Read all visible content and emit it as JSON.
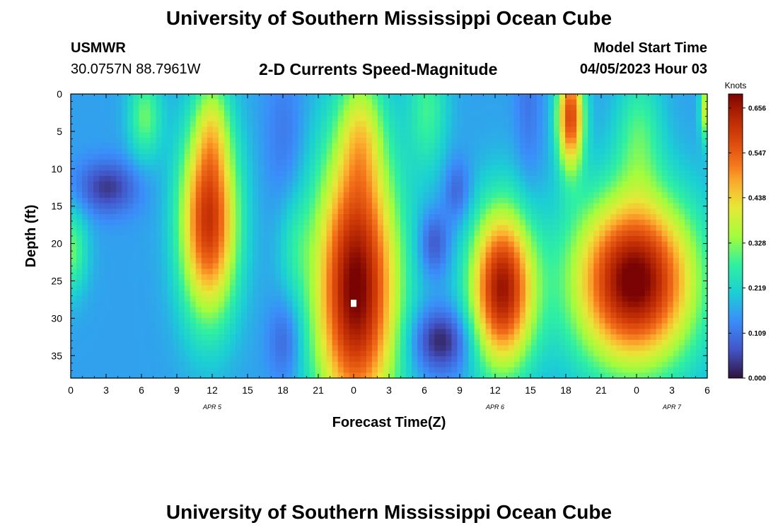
{
  "header": {
    "title": "University of Southern Mississippi Ocean Cube",
    "station": "USMWR",
    "coords": "30.0757N  88.7961W",
    "subtitle": "2-D Currents Speed-Magnitude",
    "model_label": "Model Start Time",
    "model_time": "04/05/2023 Hour 03"
  },
  "footer": {
    "title": "University of Southern Mississippi Ocean Cube"
  },
  "colors": {
    "background": "#ffffff",
    "marker": "#ffffff"
  },
  "chart_data": {
    "type": "heatmap",
    "xlabel": "Forecast Time(Z)",
    "ylabel": "Depth (ft)",
    "xlim": [
      0,
      54
    ],
    "ylim": [
      0,
      38
    ],
    "x_ticks": [
      0,
      3,
      6,
      9,
      12,
      15,
      18,
      21,
      24,
      27,
      30,
      33,
      36,
      39,
      42,
      45,
      48,
      51,
      54
    ],
    "x_tick_labels": [
      "0",
      "3",
      "6",
      "9",
      "12",
      "15",
      "18",
      "21",
      "0",
      "3",
      "6",
      "9",
      "12",
      "15",
      "18",
      "21",
      "0",
      "3",
      "6"
    ],
    "y_ticks": [
      0,
      5,
      10,
      15,
      20,
      25,
      30,
      35
    ],
    "y_tick_labels": [
      "0",
      "5",
      "10",
      "15",
      "20",
      "25",
      "30",
      "35"
    ],
    "date_labels": [
      {
        "x": 12,
        "text": "APR 5"
      },
      {
        "x": 36,
        "text": "APR 6"
      },
      {
        "x": 51,
        "text": "APR 7"
      }
    ],
    "colorbar": {
      "title": "Knots",
      "min": 0.0,
      "max": 0.69,
      "tick_values": [
        0.0,
        0.109,
        0.219,
        0.328,
        0.438,
        0.547,
        0.656
      ],
      "tick_labels": [
        "0.000",
        "0.109",
        "0.219",
        "0.328",
        "0.438",
        "0.547",
        "0.656"
      ]
    },
    "marker": {
      "x": 24,
      "depth": 28
    },
    "field": {
      "base": 0.16,
      "blobs": [
        {
          "x": 24.2,
          "d": 26,
          "sx": 2.5,
          "sd": 13,
          "a": 0.54
        },
        {
          "x": 24.6,
          "d": 5,
          "sx": 1.3,
          "sd": 6,
          "a": 0.15
        },
        {
          "x": 36.6,
          "d": 26,
          "sx": 1.9,
          "sd": 7.5,
          "a": 0.5
        },
        {
          "x": 47.8,
          "d": 25,
          "sx": 3.6,
          "sd": 8,
          "a": 0.55
        },
        {
          "x": 48.2,
          "d": 5,
          "sx": 1.4,
          "sd": 6,
          "a": 0.12
        },
        {
          "x": 11.7,
          "d": 17,
          "sx": 1.7,
          "sd": 9,
          "a": 0.45
        },
        {
          "x": 12.0,
          "d": 4,
          "sx": 1.0,
          "sd": 5,
          "a": 0.12
        },
        {
          "x": 42.4,
          "d": 3,
          "sx": 0.8,
          "sd": 5,
          "a": 0.42
        },
        {
          "x": 6.3,
          "d": 3,
          "sx": 1.0,
          "sd": 4,
          "a": 0.15
        },
        {
          "x": 0.0,
          "d": 21,
          "sx": 1.0,
          "sd": 4,
          "a": 0.15
        },
        {
          "x": 54.0,
          "d": 2,
          "sx": 0.4,
          "sd": 3,
          "a": 0.25
        },
        {
          "x": 30.3,
          "d": 2,
          "sx": 1.2,
          "sd": 6,
          "a": 0.12
        },
        {
          "x": 19.0,
          "d": 20,
          "sx": 1.0,
          "sd": 5,
          "a": 0.06
        },
        {
          "x": 3.1,
          "d": 12.5,
          "sx": 1.8,
          "sd": 2.5,
          "a": -0.12
        },
        {
          "x": 18.2,
          "d": 33,
          "sx": 1.0,
          "sd": 4,
          "a": -0.08
        },
        {
          "x": 31.4,
          "d": 33,
          "sx": 1.8,
          "sd": 3,
          "a": -0.15
        },
        {
          "x": 30.8,
          "d": 20,
          "sx": 0.9,
          "sd": 3,
          "a": -0.1
        },
        {
          "x": 32.8,
          "d": 13,
          "sx": 0.8,
          "sd": 3,
          "a": -0.08
        },
        {
          "x": 18.2,
          "d": 6,
          "sx": 1.2,
          "sd": 7,
          "a": -0.05
        },
        {
          "x": 38.8,
          "d": 1,
          "sx": 0.8,
          "sd": 10,
          "a": -0.05
        }
      ]
    }
  }
}
